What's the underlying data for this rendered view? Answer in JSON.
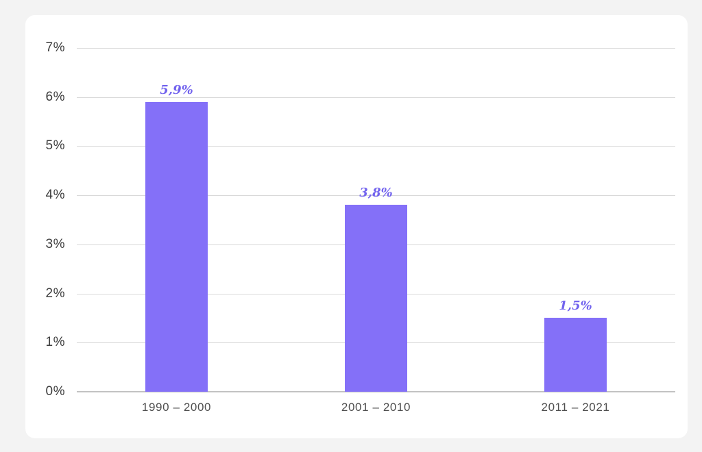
{
  "chart_data": {
    "type": "bar",
    "categories": [
      "1990 – 2000",
      "2001 – 2010",
      "2011 – 2021"
    ],
    "values": [
      5.9,
      3.8,
      1.5
    ],
    "value_labels": [
      "5,9%",
      "3,8%",
      "1,5%"
    ],
    "ytick_labels": [
      "0%",
      "1%",
      "2%",
      "3%",
      "4%",
      "5%",
      "6%",
      "7%"
    ],
    "ylim": [
      0,
      7
    ],
    "title": "",
    "xlabel": "",
    "ylabel": "",
    "grid": true,
    "legend_position": "none",
    "colors": {
      "page_bg": "#f3f3f3",
      "card_bg": "#ffffff",
      "bar": "#8470f8",
      "value_label": "#7263ee",
      "gridline": "#d9d9d9",
      "axis_line": "#c2c2c2",
      "ytick_text": "#3d3d3d",
      "xtick_text": "#4f4f4f"
    }
  }
}
